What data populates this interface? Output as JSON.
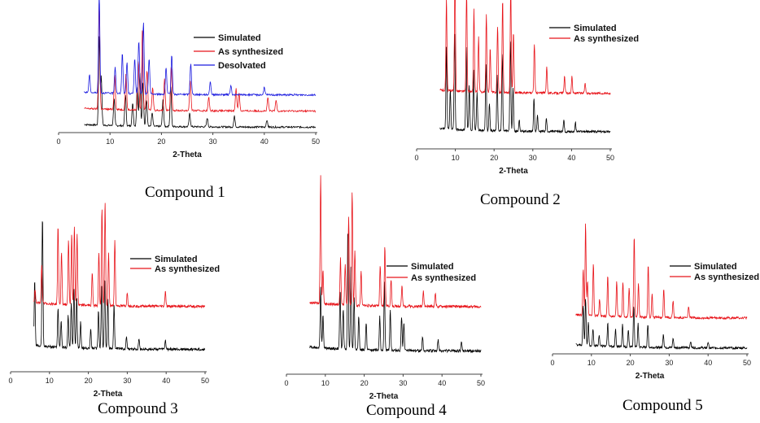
{
  "colors": {
    "simulated": "#000000",
    "as_synthesized": "#e8141a",
    "desolvated": "#1a1adf"
  },
  "chart_data": [
    {
      "type": "line",
      "caption": "Compound 1",
      "xlabel": "2-Theta",
      "xlim": [
        0,
        50
      ],
      "xticks": [
        0,
        10,
        20,
        30,
        40,
        50
      ],
      "legend_position": "top-right",
      "series": [
        {
          "name": "Simulated",
          "color": "#000000",
          "offset": 0,
          "peaks": [
            [
              7.9,
              1.0
            ],
            [
              8.3,
              0.55
            ],
            [
              10.8,
              0.3
            ],
            [
              13.0,
              0.35
            ],
            [
              14.4,
              0.25
            ],
            [
              15.3,
              0.45
            ],
            [
              15.8,
              0.6
            ],
            [
              16.4,
              0.5
            ],
            [
              17.1,
              0.3
            ],
            [
              18.2,
              0.15
            ],
            [
              20.3,
              0.3
            ],
            [
              21.8,
              0.45
            ],
            [
              25.5,
              0.15
            ],
            [
              28.9,
              0.1
            ],
            [
              34.2,
              0.12
            ],
            [
              40.5,
              0.08
            ]
          ]
        },
        {
          "name": "As synthesized",
          "color": "#e8141a",
          "offset": 0.18,
          "peaks": [
            [
              7.9,
              1.2
            ],
            [
              10.9,
              0.4
            ],
            [
              13.1,
              0.4
            ],
            [
              15.5,
              0.55
            ],
            [
              16.3,
              0.9
            ],
            [
              17.2,
              0.45
            ],
            [
              18.3,
              0.25
            ],
            [
              20.6,
              0.35
            ],
            [
              21.9,
              0.5
            ],
            [
              25.6,
              0.35
            ],
            [
              29.2,
              0.15
            ],
            [
              34.5,
              0.25
            ],
            [
              35.1,
              0.2
            ],
            [
              40.7,
              0.15
            ],
            [
              42.3,
              0.12
            ]
          ]
        },
        {
          "name": "Desolvated",
          "color": "#1a1adf",
          "offset": 0.36,
          "peaks": [
            [
              6.0,
              0.2
            ],
            [
              7.9,
              1.1
            ],
            [
              11.0,
              0.3
            ],
            [
              12.4,
              0.45
            ],
            [
              13.3,
              0.35
            ],
            [
              14.8,
              0.4
            ],
            [
              15.6,
              0.6
            ],
            [
              16.5,
              0.8
            ],
            [
              17.6,
              0.4
            ],
            [
              20.9,
              0.3
            ],
            [
              22.0,
              0.45
            ],
            [
              25.7,
              0.35
            ],
            [
              29.5,
              0.15
            ],
            [
              33.5,
              0.1
            ],
            [
              40.0,
              0.08
            ]
          ]
        }
      ]
    },
    {
      "type": "line",
      "caption": "Compound 2",
      "xlabel": "2-Theta",
      "xlim": [
        0,
        50
      ],
      "xticks": [
        0,
        10,
        20,
        30,
        40,
        50
      ],
      "legend_position": "top-right",
      "series": [
        {
          "name": "Simulated",
          "color": "#000000",
          "offset": 0,
          "peaks": [
            [
              7.7,
              0.75
            ],
            [
              8.7,
              0.35
            ],
            [
              9.8,
              0.9
            ],
            [
              12.8,
              0.75
            ],
            [
              13.6,
              0.4
            ],
            [
              14.7,
              0.55
            ],
            [
              15.6,
              0.35
            ],
            [
              17.9,
              0.6
            ],
            [
              18.8,
              0.25
            ],
            [
              20.8,
              0.5
            ],
            [
              22.1,
              0.7
            ],
            [
              24.2,
              0.85
            ],
            [
              24.9,
              0.4
            ],
            [
              26.5,
              0.1
            ],
            [
              30.3,
              0.3
            ],
            [
              31.2,
              0.15
            ],
            [
              33.5,
              0.12
            ],
            [
              38.0,
              0.1
            ],
            [
              41.0,
              0.08
            ]
          ]
        },
        {
          "name": "As synthesized",
          "color": "#e8141a",
          "offset": 0.35,
          "peaks": [
            [
              7.7,
              0.85
            ],
            [
              9.9,
              1.05
            ],
            [
              12.9,
              0.9
            ],
            [
              14.8,
              0.75
            ],
            [
              16.0,
              0.5
            ],
            [
              18.0,
              0.7
            ],
            [
              19.0,
              0.4
            ],
            [
              20.9,
              0.6
            ],
            [
              22.2,
              0.85
            ],
            [
              24.3,
              1.0
            ],
            [
              25.0,
              0.55
            ],
            [
              30.4,
              0.45
            ],
            [
              33.6,
              0.25
            ],
            [
              38.2,
              0.15
            ],
            [
              40.1,
              0.15
            ],
            [
              43.5,
              0.1
            ]
          ]
        }
      ]
    },
    {
      "type": "line",
      "caption": "Compound 3",
      "xlabel": "2-Theta",
      "xlim": [
        0,
        50
      ],
      "xticks": [
        0,
        10,
        20,
        30,
        40,
        50
      ],
      "legend_position": "top-right",
      "series": [
        {
          "name": "Simulated",
          "color": "#000000",
          "offset": 0,
          "peaks": [
            [
              6.2,
              0.5
            ],
            [
              8.2,
              1.0
            ],
            [
              12.2,
              0.3
            ],
            [
              13.0,
              0.2
            ],
            [
              14.8,
              0.25
            ],
            [
              15.6,
              0.35
            ],
            [
              16.3,
              0.45
            ],
            [
              17.0,
              0.4
            ],
            [
              18.0,
              0.2
            ],
            [
              20.6,
              0.15
            ],
            [
              22.6,
              0.3
            ],
            [
              23.4,
              0.5
            ],
            [
              24.2,
              0.55
            ],
            [
              25.0,
              0.4
            ],
            [
              26.6,
              0.35
            ],
            [
              29.8,
              0.1
            ],
            [
              33.0,
              0.08
            ],
            [
              39.8,
              0.07
            ]
          ]
        },
        {
          "name": "As synthesized",
          "color": "#e8141a",
          "offset": 0.33,
          "peaks": [
            [
              6.3,
              0.1
            ],
            [
              8.0,
              0.3
            ],
            [
              12.2,
              0.6
            ],
            [
              13.1,
              0.4
            ],
            [
              14.9,
              0.5
            ],
            [
              15.7,
              0.55
            ],
            [
              16.4,
              0.6
            ],
            [
              17.1,
              0.55
            ],
            [
              21.0,
              0.25
            ],
            [
              22.7,
              0.4
            ],
            [
              23.5,
              0.75
            ],
            [
              24.3,
              0.8
            ],
            [
              25.2,
              0.4
            ],
            [
              26.8,
              0.5
            ],
            [
              30.0,
              0.1
            ],
            [
              39.8,
              0.12
            ]
          ]
        }
      ]
    },
    {
      "type": "line",
      "caption": "Compound 4",
      "xlabel": "2-Theta",
      "xlim": [
        0,
        50
      ],
      "xticks": [
        0,
        10,
        20,
        30,
        40,
        50
      ],
      "legend_position": "top-right",
      "series": [
        {
          "name": "Simulated",
          "color": "#000000",
          "offset": 0,
          "peaks": [
            [
              8.8,
              0.45
            ],
            [
              9.4,
              0.25
            ],
            [
              13.8,
              0.45
            ],
            [
              14.6,
              0.3
            ],
            [
              15.8,
              0.9
            ],
            [
              16.6,
              0.65
            ],
            [
              17.4,
              0.4
            ],
            [
              18.6,
              0.25
            ],
            [
              20.5,
              0.2
            ],
            [
              24.0,
              0.25
            ],
            [
              25.2,
              0.5
            ],
            [
              26.7,
              0.3
            ],
            [
              29.6,
              0.25
            ],
            [
              30.2,
              0.2
            ],
            [
              35.0,
              0.1
            ],
            [
              39.0,
              0.08
            ],
            [
              45.0,
              0.06
            ]
          ]
        },
        {
          "name": "As synthesized",
          "color": "#e8141a",
          "offset": 0.33,
          "peaks": [
            [
              8.8,
              0.95
            ],
            [
              9.4,
              0.25
            ],
            [
              13.9,
              0.35
            ],
            [
              15.1,
              0.3
            ],
            [
              16.0,
              0.65
            ],
            [
              16.9,
              0.85
            ],
            [
              17.6,
              0.4
            ],
            [
              19.2,
              0.25
            ],
            [
              24.1,
              0.3
            ],
            [
              25.3,
              0.45
            ],
            [
              26.9,
              0.2
            ],
            [
              29.7,
              0.15
            ],
            [
              35.2,
              0.12
            ],
            [
              38.3,
              0.1
            ]
          ]
        }
      ]
    },
    {
      "type": "line",
      "caption": "Compound 5",
      "xlabel": "2-Theta",
      "xlim": [
        0,
        50
      ],
      "xticks": [
        0,
        10,
        20,
        30,
        40,
        50
      ],
      "legend_position": "top-right",
      "series": [
        {
          "name": "Simulated",
          "color": "#000000",
          "offset": 0,
          "peaks": [
            [
              7.9,
              0.35
            ],
            [
              8.5,
              0.4
            ],
            [
              9.2,
              0.2
            ],
            [
              10.4,
              0.15
            ],
            [
              12.0,
              0.1
            ],
            [
              14.2,
              0.2
            ],
            [
              16.2,
              0.15
            ],
            [
              18.0,
              0.2
            ],
            [
              19.5,
              0.15
            ],
            [
              20.9,
              0.35
            ],
            [
              22.0,
              0.2
            ],
            [
              24.5,
              0.2
            ],
            [
              28.5,
              0.12
            ],
            [
              31.0,
              0.08
            ],
            [
              35.5,
              0.06
            ],
            [
              40.0,
              0.05
            ]
          ]
        },
        {
          "name": "As synthesized",
          "color": "#e8141a",
          "offset": 0.26,
          "peaks": [
            [
              7.9,
              0.4
            ],
            [
              8.5,
              0.8
            ],
            [
              9.0,
              0.3
            ],
            [
              10.5,
              0.45
            ],
            [
              12.1,
              0.15
            ],
            [
              14.2,
              0.35
            ],
            [
              16.5,
              0.3
            ],
            [
              18.1,
              0.3
            ],
            [
              19.7,
              0.25
            ],
            [
              21.0,
              0.7
            ],
            [
              22.1,
              0.3
            ],
            [
              24.6,
              0.45
            ],
            [
              25.6,
              0.2
            ],
            [
              28.6,
              0.25
            ],
            [
              31.0,
              0.15
            ],
            [
              35.0,
              0.1
            ]
          ]
        }
      ]
    }
  ]
}
